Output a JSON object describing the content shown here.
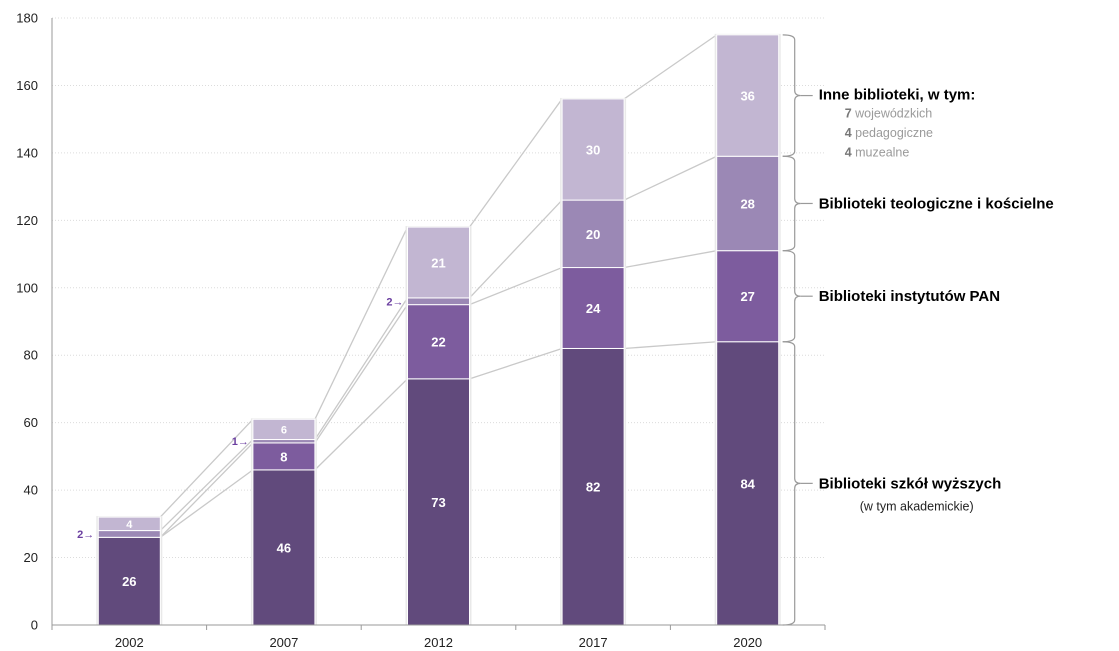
{
  "chart_data": {
    "type": "bar",
    "stacked": true,
    "categories": [
      "2002",
      "2007",
      "2012",
      "2017",
      "2020"
    ],
    "series": [
      {
        "name": "Biblioteki szkół wyższych",
        "values": [
          26,
          46,
          73,
          82,
          84
        ],
        "color": "#614A7C"
      },
      {
        "name": "Biblioteki instytutów PAN",
        "values": [
          0,
          8,
          22,
          24,
          27
        ],
        "color": "#7D5C9E"
      },
      {
        "name": "Biblioteki teologiczne i kościelne",
        "values": [
          2,
          1,
          2,
          20,
          28
        ],
        "color": "#9B88B5"
      },
      {
        "name": "Inne biblioteki, w tym:",
        "values": [
          4,
          6,
          21,
          30,
          36
        ],
        "color": "#C2B6D2"
      }
    ],
    "callouts": [
      {
        "category": "2002",
        "text": "2→",
        "value": 2
      },
      {
        "category": "2007",
        "text": "1→",
        "value": 1
      },
      {
        "category": "2012",
        "text": "2→",
        "value": 2
      }
    ],
    "ylim": [
      0,
      180
    ],
    "yticks": [
      "0",
      "20",
      "40",
      "60",
      "80",
      "100",
      "120",
      "140",
      "160",
      "180"
    ],
    "grid": true,
    "legend": {
      "placement": "right",
      "entries": [
        {
          "title": "Inne biblioteki, w tym:",
          "sub": [
            {
              "num": "7",
              "text": "wojewódzkich"
            },
            {
              "num": "4",
              "text": "pedagogiczne"
            },
            {
              "num": "4",
              "text": " muzealne"
            }
          ]
        },
        {
          "title": "Biblioteki teologiczne i kościelne"
        },
        {
          "title": "Biblioteki instytutów PAN"
        },
        {
          "title": "Biblioteki szkół wyższych",
          "note": "(w tym akademickie)"
        }
      ]
    }
  }
}
